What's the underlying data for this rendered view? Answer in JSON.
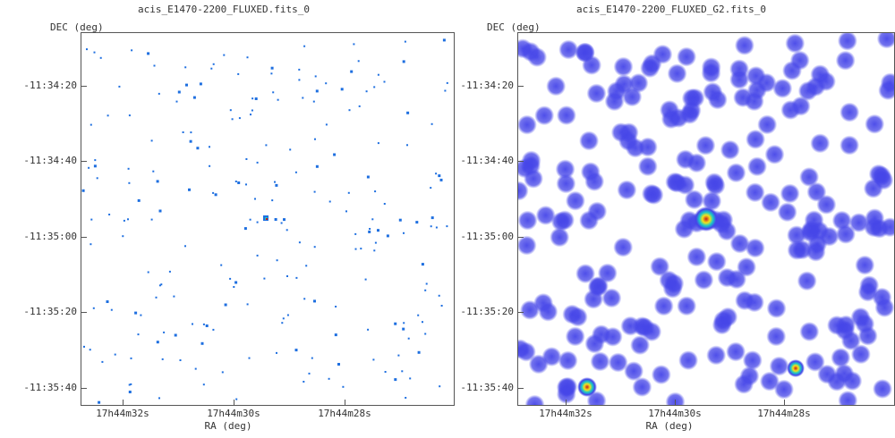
{
  "panels": {
    "left": {
      "title": "acis_E1470-2200_FLUXED.fits_0",
      "ylabel": "DEC (deg)",
      "xlabel": "RA (deg)",
      "yticks": [
        "-11:34:20",
        "-11:34:40",
        "-11:35:00",
        "-11:35:20",
        "-11:35:40"
      ],
      "xticks": [
        "17h44m32s",
        "17h44m30s",
        "17h44m28s"
      ]
    },
    "right": {
      "title": "acis_E1470-2200_FLUXED_G2.fits_0",
      "ylabel": "DEC (deg)",
      "xlabel": "RA (deg)",
      "yticks": [
        "-11:34:20",
        "-11:34:40",
        "-11:35:00",
        "-11:35:20",
        "-11:35:40"
      ],
      "xticks": [
        "17h44m32s",
        "17h44m30s",
        "17h44m28s"
      ]
    }
  },
  "colors": {
    "event": "#1e6fe0",
    "blob": "#4545e8",
    "source_core": "#c81d1d",
    "source_ring": "#f2e21b",
    "source_mid": "#19c8c8"
  }
}
